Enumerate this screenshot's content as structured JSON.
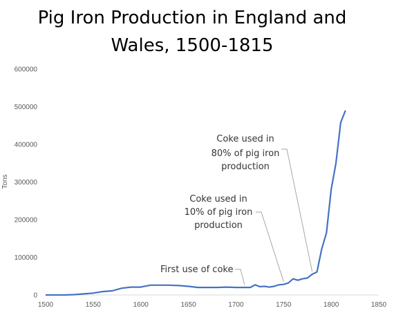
{
  "chart_data": {
    "type": "line",
    "title_lines": [
      "Pig Iron Production in England and",
      "Wales, 1500-1815"
    ],
    "xlabel": "",
    "ylabel": "Tons",
    "xlim": [
      1500,
      1850
    ],
    "ylim": [
      0,
      600000
    ],
    "x_ticks": [
      1500,
      1550,
      1600,
      1650,
      1700,
      1750,
      1800,
      1850
    ],
    "y_ticks": [
      0,
      100000,
      200000,
      300000,
      400000,
      500000,
      600000
    ],
    "grid": false,
    "colors": {
      "line": "#4472c4",
      "axis": "#d9d9d9",
      "leader": "#a6a6a6"
    },
    "series": [
      {
        "points": [
          [
            1500,
            0
          ],
          [
            1510,
            0
          ],
          [
            1520,
            0
          ],
          [
            1530,
            1000
          ],
          [
            1540,
            3000
          ],
          [
            1550,
            5000
          ],
          [
            1560,
            9000
          ],
          [
            1570,
            11000
          ],
          [
            1580,
            18000
          ],
          [
            1590,
            21000
          ],
          [
            1600,
            21000
          ],
          [
            1610,
            26000
          ],
          [
            1620,
            26000
          ],
          [
            1630,
            26000
          ],
          [
            1640,
            25000
          ],
          [
            1650,
            23000
          ],
          [
            1660,
            20000
          ],
          [
            1670,
            20000
          ],
          [
            1680,
            20000
          ],
          [
            1690,
            21000
          ],
          [
            1700,
            20000
          ],
          [
            1710,
            20000
          ],
          [
            1715,
            20000
          ],
          [
            1720,
            27000
          ],
          [
            1725,
            22000
          ],
          [
            1730,
            23000
          ],
          [
            1735,
            21000
          ],
          [
            1740,
            23000
          ],
          [
            1745,
            27000
          ],
          [
            1750,
            28000
          ],
          [
            1755,
            32000
          ],
          [
            1760,
            43000
          ],
          [
            1765,
            39000
          ],
          [
            1770,
            43000
          ],
          [
            1775,
            45000
          ],
          [
            1780,
            55000
          ],
          [
            1785,
            61000
          ],
          [
            1790,
            122000
          ],
          [
            1795,
            165000
          ],
          [
            1800,
            280000
          ],
          [
            1805,
            350000
          ],
          [
            1810,
            458000
          ],
          [
            1815,
            490000
          ]
        ]
      }
    ],
    "annotations": [
      {
        "lines": [
          "First use of coke"
        ],
        "x": 1709,
        "y": 20000
      },
      {
        "lines": [
          "Coke used in",
          "10% of pig iron",
          "production"
        ],
        "x": 1750,
        "y": 28000
      },
      {
        "lines": [
          "Coke used in",
          "80% of pig iron",
          "production"
        ],
        "x": 1780,
        "y": 55000
      }
    ]
  }
}
